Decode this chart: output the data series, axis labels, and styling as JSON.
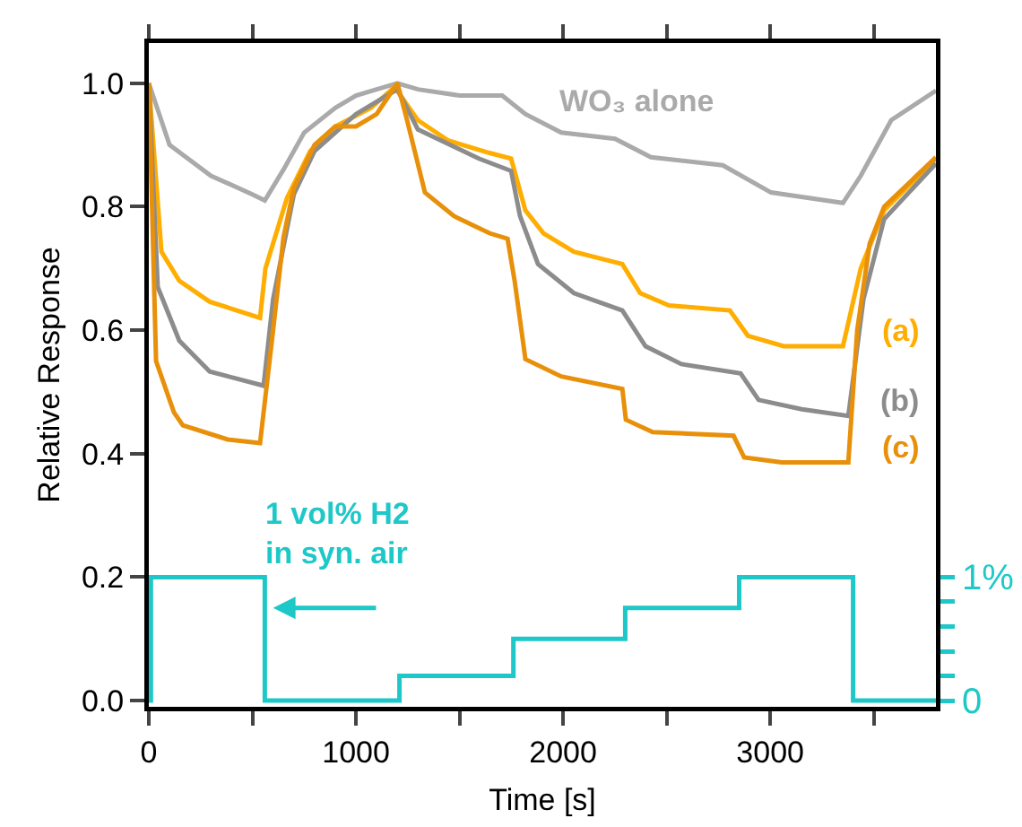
{
  "chart_data": {
    "type": "line",
    "xlabel": "Time [s]",
    "ylabel": "Relative Response",
    "xlim": [
      0,
      3800
    ],
    "ylim": [
      -0.01,
      1.065
    ],
    "y2lim": [
      -0.05,
      5.325
    ],
    "xticks": [
      0,
      {
        "value": 500,
        "label": null
      },
      1000,
      {
        "value": 1500,
        "label": null
      },
      2000,
      {
        "value": 2500,
        "label": null
      },
      3000,
      {
        "value": 3500,
        "label": null
      }
    ],
    "yticks": [
      {
        "value": 0,
        "label": "0.0"
      },
      0.2,
      0.4,
      0.6,
      0.8,
      {
        "value": 1,
        "label": "1.0"
      }
    ],
    "y2ticks": [
      0,
      {
        "value": 0.2,
        "label": null
      },
      {
        "value": 0.4,
        "label": null
      },
      {
        "value": 0.6,
        "label": null
      },
      {
        "value": 0.8,
        "label": null
      },
      {
        "value": 1,
        "label": "1%"
      }
    ],
    "grid": false,
    "legend": false,
    "marker": "none",
    "line_style": "solid",
    "series": [
      {
        "name": "WO₃ alone",
        "color": "#aaaaaa",
        "x": [
          0,
          100,
          300,
          500,
          560,
          650,
          750,
          900,
          1000,
          1100,
          1200,
          1300,
          1500,
          1706,
          1818,
          1991,
          2251,
          2424,
          2771,
          3004,
          3351,
          3437,
          3584,
          3800
        ],
        "values": [
          1.0,
          0.9,
          0.85,
          0.82,
          0.81,
          0.86,
          0.92,
          0.96,
          0.98,
          0.99,
          1.0,
          0.99,
          0.98,
          0.98,
          0.95,
          0.92,
          0.91,
          0.88,
          0.867,
          0.823,
          0.806,
          0.85,
          0.94,
          0.988
        ]
      },
      {
        "name": "(a)",
        "color": "#ffad00",
        "x": [
          0,
          61,
          147,
          294,
          537,
          563,
          667,
          779,
          900,
          1073,
          1186,
          1299,
          1446,
          1645,
          1749,
          1818,
          1905,
          2052,
          2286,
          2372,
          2511,
          2805,
          2892,
          3065,
          3351,
          3437,
          3550,
          3800
        ],
        "values": [
          1.0,
          0.727,
          0.68,
          0.646,
          0.62,
          0.7,
          0.814,
          0.89,
          0.93,
          0.96,
          0.994,
          0.94,
          0.907,
          0.887,
          0.878,
          0.794,
          0.757,
          0.727,
          0.707,
          0.66,
          0.64,
          0.632,
          0.591,
          0.574,
          0.574,
          0.7,
          0.794,
          0.878
        ]
      },
      {
        "name": "(b)",
        "color": "#8c8c8c",
        "x": [
          0,
          43,
          147,
          294,
          554,
          600,
          700,
          800,
          900,
          1000,
          1100,
          1200,
          1299,
          1593,
          1749,
          1792,
          1879,
          2052,
          2286,
          2398,
          2571,
          2857,
          2944,
          3152,
          3377,
          3450,
          3550,
          3800
        ],
        "values": [
          1.0,
          0.67,
          0.583,
          0.533,
          0.51,
          0.65,
          0.82,
          0.89,
          0.92,
          0.95,
          0.97,
          0.99,
          0.925,
          0.878,
          0.858,
          0.785,
          0.707,
          0.66,
          0.632,
          0.574,
          0.545,
          0.53,
          0.487,
          0.472,
          0.461,
          0.65,
          0.78,
          0.87
        ]
      },
      {
        "name": "(c)",
        "color": "#e8900a",
        "x": [
          0,
          35,
          121,
          164,
          381,
          537,
          600,
          650,
          700,
          800,
          900,
          1000,
          1100,
          1200,
          1247,
          1333,
          1472,
          1645,
          1732,
          1766,
          1818,
          1991,
          2286,
          2303,
          2433,
          2823,
          2874,
          3056,
          3377,
          3420,
          3480,
          3550,
          3800
        ],
        "values": [
          1.0,
          0.55,
          0.467,
          0.446,
          0.423,
          0.417,
          0.6,
          0.75,
          0.83,
          0.9,
          0.93,
          0.93,
          0.95,
          1.0,
          0.94,
          0.823,
          0.785,
          0.757,
          0.748,
          0.68,
          0.553,
          0.525,
          0.505,
          0.455,
          0.435,
          0.429,
          0.394,
          0.386,
          0.386,
          0.6,
          0.74,
          0.8,
          0.88
        ]
      },
      {
        "name": "1 vol% H2 in syn. air",
        "color": "#1ec8c8",
        "axis": "y2",
        "x": [
          0,
          10,
          10,
          560,
          560,
          1210,
          1210,
          1760,
          1760,
          2300,
          2300,
          2850,
          2850,
          3400,
          3400,
          3800
        ],
        "values": [
          0,
          0,
          1,
          1,
          0,
          0,
          0.2,
          0.2,
          0.5,
          0.5,
          0.75,
          0.75,
          1,
          1,
          0,
          0
        ]
      }
    ]
  }
}
